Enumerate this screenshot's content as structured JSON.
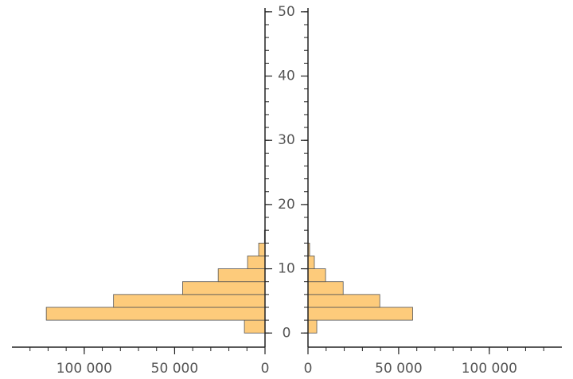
{
  "chart_data": {
    "type": "histogram",
    "bins": [
      0,
      2,
      4,
      6,
      8,
      10,
      12,
      14,
      16
    ],
    "series": [
      {
        "color": "#fdcb7b",
        "values": [
          11400,
          121000,
          83800,
          45600,
          25900,
          9650,
          3500,
          300
        ]
      },
      {
        "color": "#fdcb7b",
        "values": [
          4850,
          57700,
          39600,
          19400,
          9700,
          3500,
          900,
          100
        ]
      }
    ],
    "xlim": [
      0,
      140000
    ],
    "xticks": [
      0,
      {
        "value": 50000,
        "label": "50 000"
      },
      {
        "value": 100000,
        "label": "100 000"
      }
    ],
    "xminorticks": [
      0,
      10000,
      20000,
      30000,
      40000,
      50000,
      60000,
      70000,
      80000,
      90000,
      100000,
      110000,
      120000,
      130000
    ],
    "ylim": [
      -2.2,
      50.6
    ],
    "yticks": [
      0,
      10,
      20,
      30,
      40,
      50
    ],
    "yminorticks": [
      0,
      2,
      4,
      6,
      8,
      10,
      12,
      14,
      16,
      18,
      20,
      22,
      24,
      26,
      28,
      30,
      32,
      34,
      36,
      38,
      40,
      42,
      44,
      46,
      48,
      50
    ]
  }
}
